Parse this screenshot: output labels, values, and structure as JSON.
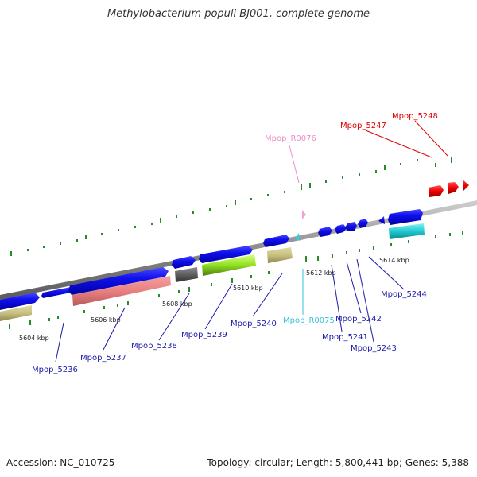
{
  "title": "Methylobacterium populi BJ001, complete genome",
  "accession": "Accession: NC_010725",
  "topology": "Topology: circular; Length: 5,800,441 bp; Genes: 5,388",
  "scale_labels": [
    "5604 kbp",
    "5606 kbp",
    "5608 kbp",
    "5610 kbp",
    "5612 kbp",
    "5614 kbp"
  ],
  "gene_labels": [
    {
      "name": "Mpop_5236",
      "color": "#1a1aa6"
    },
    {
      "name": "Mpop_5237",
      "color": "#1a1aa6"
    },
    {
      "name": "Mpop_5238",
      "color": "#1a1aa6"
    },
    {
      "name": "Mpop_5239",
      "color": "#1a1aa6"
    },
    {
      "name": "Mpop_5240",
      "color": "#1a1aa6"
    },
    {
      "name": "Mpop_R0075",
      "color": "#33c4d8"
    },
    {
      "name": "Mpop_5241",
      "color": "#1a1aa6"
    },
    {
      "name": "Mpop_5242",
      "color": "#1a1aa6"
    },
    {
      "name": "Mpop_5243",
      "color": "#1a1aa6"
    },
    {
      "name": "Mpop_5244",
      "color": "#1a1aa6"
    },
    {
      "name": "Mpop_R0076",
      "color": "#f08cc8"
    },
    {
      "name": "Mpop_5247",
      "color": "#e00000"
    },
    {
      "name": "Mpop_5248",
      "color": "#e00000"
    }
  ]
}
